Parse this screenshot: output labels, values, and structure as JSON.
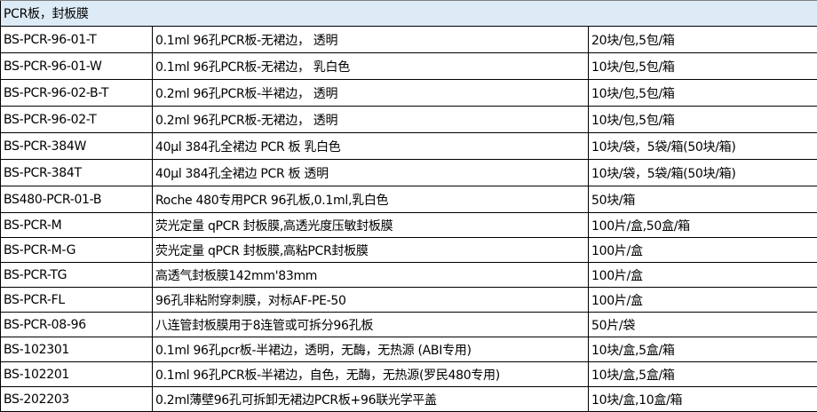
{
  "section_title": "PCR板，封板膜",
  "colors": {
    "header_bg": "#ddebf7",
    "border": "#000000"
  },
  "rows": [
    [
      "BS-PCR-96-01-T",
      "0.1ml 96孔PCR板-无裙边， 透明",
      "20块/包,5包/箱"
    ],
    [
      "BS-PCR-96-01-W",
      "0.1ml 96孔PCR板-无裙边， 乳白色",
      "10块/包,5包/箱"
    ],
    [
      "BS-PCR-96-02-B-T",
      "0.2ml 96孔PCR板-半裙边， 透明",
      "10块/包,5包/箱"
    ],
    [
      "BS-PCR-96-02-T",
      "0.2ml 96孔PCR板-无裙边， 透明",
      "10块/包,5包/箱"
    ],
    [
      "BS-PCR-384W",
      "40μl 384孔全裙边 PCR 板 乳白色",
      "10块/袋，5袋/箱(50块/箱)"
    ],
    [
      "BS-PCR-384T",
      "40μl 384孔全裙边 PCR 板 透明",
      "10块/袋，5袋/箱(50块/箱)"
    ],
    [
      "BS480-PCR-01-B",
      "Roche 480专用PCR 96孔板,0.1ml,乳白色",
      "50块/箱"
    ],
    [
      "BS-PCR-M",
      "荧光定量 qPCR 封板膜,高透光度压敏封板膜",
      "100片/盒,50盒/箱"
    ],
    [
      "BS-PCR-M-G",
      "荧光定量 qPCR 封板膜,高粘PCR封板膜",
      "100片/盒"
    ],
    [
      "BS-PCR-TG",
      "高透气封板膜142mm'83mm",
      "100片/盒"
    ],
    [
      "BS-PCR-FL",
      "96孔非粘附穿刺膜，对标AF-PE-50",
      "100片/盒"
    ],
    [
      "BS-PCR-08-96",
      "八连管封板膜用于8连管或可拆分96孔板",
      "50片/袋"
    ],
    [
      "BS-102301",
      "0.1ml 96孔pcr板-半裙边，透明，无酶，无热源 (ABI专用)",
      "10块/盒,5盒/箱"
    ],
    [
      "BS-102201",
      "0.1ml 96孔PCR板-半裙边，自色，无酶，无热源(罗民480专用)",
      "10块/盒,5盒/箱"
    ],
    [
      "BS-202203",
      "0.2ml薄壁96孔可拆卸无裙边PCR板+96联光学平盖",
      "10块/盒,10盒/箱"
    ]
  ]
}
